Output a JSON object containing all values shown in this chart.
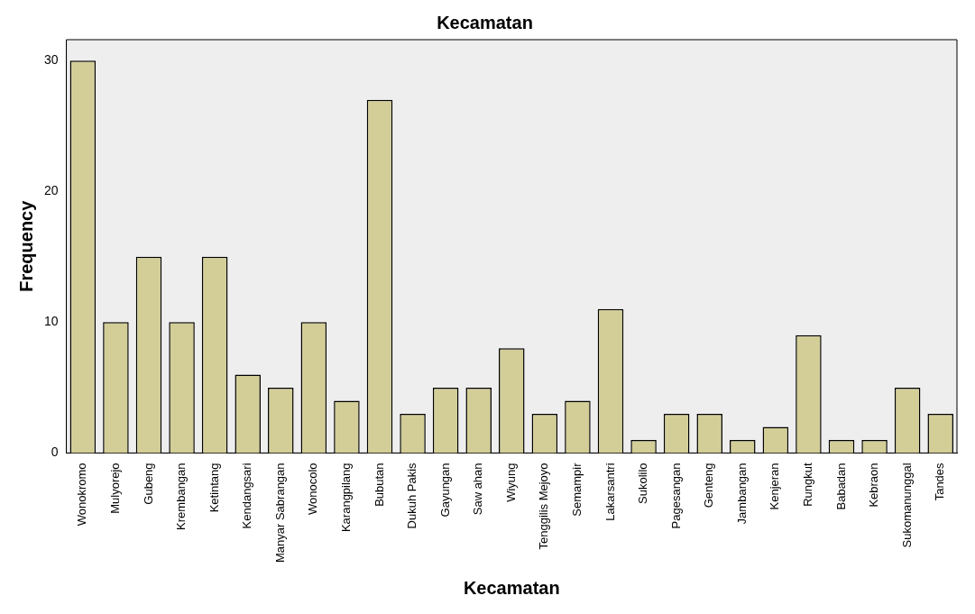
{
  "chart_data": {
    "type": "bar",
    "title": "Kecamatan",
    "xlabel": "Kecamatan",
    "ylabel": "Frequency",
    "categories": [
      "Wonokromo",
      "Mulyorejo",
      "Gubeng",
      "Krembangan",
      "Ketintang",
      "Kendangsari",
      "Manyar Sabrangan",
      "Wonocolo",
      "Karangpilang",
      "Bubutan",
      "Dukuh Pakis",
      "Gayungan",
      "Saw ahan",
      "Wiyung",
      "Tenggilis Mejoyo",
      "Semampir",
      "Lakarsantri",
      "Sukolilo",
      "Pagesangan",
      "Genteng",
      "Jambangan",
      "Kenjeran",
      "Rungkut",
      "Babadan",
      "Kebraon",
      "Sukomanunggal",
      "Tandes"
    ],
    "values": [
      30,
      10,
      15,
      10,
      15,
      6,
      5,
      10,
      4,
      27,
      3,
      5,
      5,
      8,
      3,
      4,
      11,
      1,
      3,
      3,
      1,
      2,
      9,
      1,
      1,
      5,
      3
    ],
    "color": "#d3ce97",
    "ylim": [
      0,
      31.6
    ],
    "yticks": [
      0,
      10,
      20,
      30
    ],
    "grid": false,
    "legend": false
  }
}
